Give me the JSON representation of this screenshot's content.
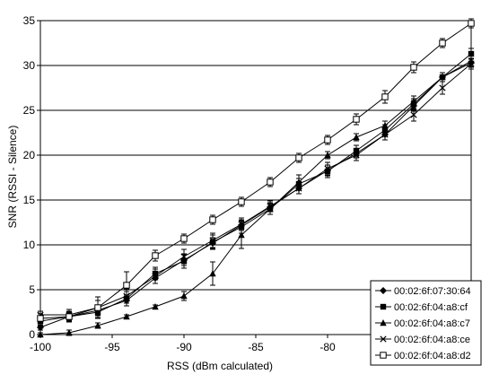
{
  "chart_data": {
    "type": "line",
    "title": "",
    "xlabel": "RSS (dBm calculated)",
    "ylabel": "SNR (RSSI - Silence)",
    "xlim": [
      -100,
      -70
    ],
    "ylim": [
      0,
      35
    ],
    "x_ticks": [
      -100,
      -95,
      -90,
      -85,
      -80
    ],
    "y_ticks": [
      0,
      5,
      10,
      15,
      20,
      25,
      30,
      35
    ],
    "grid": "horizontal",
    "legend_position": "bottom-right",
    "series": [
      {
        "name": "00:02:6f:07:30:64",
        "marker": "diamond",
        "x": [
          -100,
          -98,
          -96,
          -94,
          -92,
          -90,
          -88,
          -86,
          -84,
          -82,
          -80,
          -78,
          -76,
          -74,
          -72,
          -70
        ],
        "y": [
          0.8,
          2.0,
          2.7,
          3.8,
          6.3,
          8.3,
          10.2,
          12.2,
          14.2,
          16.3,
          18.3,
          20.2,
          22.3,
          25.5,
          28.7,
          30.3
        ],
        "err": [
          0.3,
          0.4,
          0.6,
          0.6,
          0.6,
          0.6,
          0.6,
          0.6,
          0.5,
          0.6,
          0.6,
          0.5,
          0.6,
          0.6,
          0.5,
          0.5
        ]
      },
      {
        "name": "00:02:6f:04:a8:cf",
        "marker": "square",
        "x": [
          -100,
          -98,
          -96,
          -94,
          -92,
          -90,
          -88,
          -86,
          -84,
          -82,
          -80,
          -78,
          -76,
          -74,
          -72,
          -70
        ],
        "y": [
          1.5,
          2.0,
          2.5,
          4.0,
          6.8,
          8.2,
          10.3,
          12.0,
          14.0,
          16.8,
          18.2,
          20.5,
          22.8,
          25.7,
          28.7,
          31.3
        ],
        "err": [
          0.5,
          0.5,
          0.6,
          0.8,
          0.7,
          0.8,
          0.8,
          0.7,
          0.6,
          0.6,
          0.7,
          0.6,
          0.6,
          0.6,
          0.5,
          0.6
        ]
      },
      {
        "name": "00:02:6f:04:a8:c7",
        "marker": "triangle",
        "x": [
          -100,
          -98,
          -96,
          -94,
          -92,
          -90,
          -88,
          -86,
          -84,
          -82,
          -80,
          -78,
          -76,
          -74,
          -72,
          -70
        ],
        "y": [
          0.0,
          0.2,
          1.0,
          2.0,
          3.1,
          4.3,
          6.8,
          11.1,
          14.0,
          17.0,
          20.0,
          22.0,
          23.3,
          26.0,
          28.7,
          30.5
        ],
        "err": [
          0.2,
          0.3,
          0.3,
          0.2,
          0.2,
          0.5,
          1.3,
          1.5,
          0.6,
          0.8,
          0.4,
          0.4,
          0.5,
          0.6,
          0.5,
          0.6
        ]
      },
      {
        "name": "00:02:6f:04:a8:ce",
        "marker": "x",
        "x": [
          -100,
          -98,
          -96,
          -94,
          -92,
          -90,
          -88,
          -86,
          -84,
          -82,
          -80,
          -78,
          -76,
          -74,
          -72,
          -70
        ],
        "y": [
          2.2,
          2.2,
          3.0,
          4.3,
          6.5,
          8.7,
          10.5,
          12.3,
          14.3,
          16.3,
          18.5,
          20.0,
          22.3,
          24.5,
          27.5,
          30.2
        ],
        "err": [
          0.4,
          0.6,
          0.8,
          0.8,
          0.8,
          0.8,
          0.8,
          0.7,
          0.6,
          0.6,
          0.7,
          0.6,
          0.6,
          0.7,
          0.7,
          0.6
        ]
      },
      {
        "name": "00:02:6f:04:a8:d2",
        "marker": "open-square",
        "x": [
          -100,
          -98,
          -96,
          -94,
          -92,
          -90,
          -88,
          -86,
          -84,
          -82,
          -80,
          -78,
          -76,
          -74,
          -72,
          -70
        ],
        "y": [
          1.8,
          2.0,
          3.0,
          5.5,
          8.8,
          10.7,
          12.8,
          14.8,
          17.0,
          19.7,
          21.7,
          24.0,
          26.5,
          29.8,
          32.5,
          34.7
        ],
        "err": [
          0.5,
          0.6,
          1.2,
          1.5,
          0.6,
          0.5,
          0.5,
          0.5,
          0.5,
          0.5,
          0.5,
          0.6,
          0.7,
          0.6,
          0.5,
          0.5
        ]
      }
    ]
  }
}
